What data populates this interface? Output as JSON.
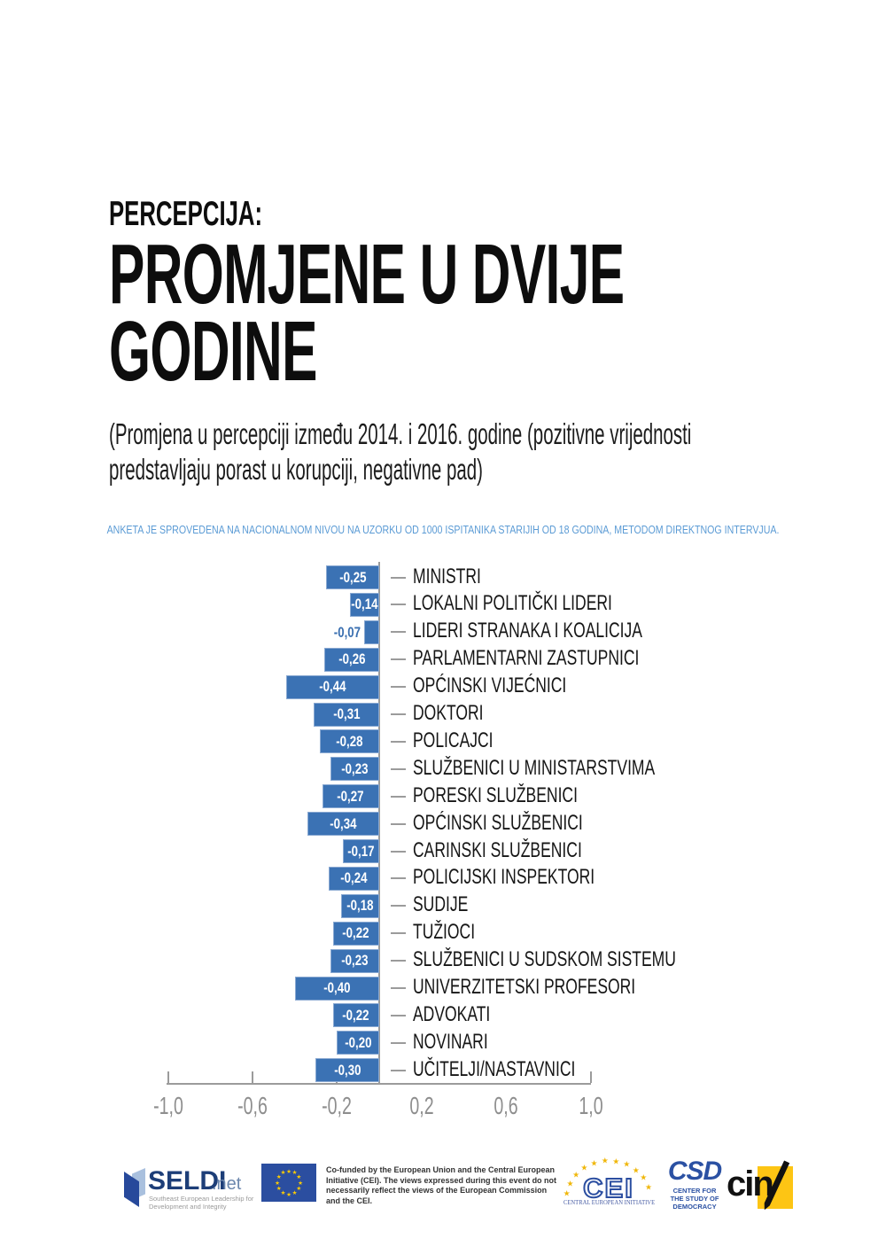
{
  "header": {
    "kicker": "PERCEPCIJA:",
    "title_lines": [
      "PROMJENE U DVIJE",
      "GODINE"
    ],
    "subtitle": "(Promjena u percepciji između 2014. i 2016. godine (pozitivne vrijednosti predstavljaju porast u korupciji, negativne pad)",
    "note": "ANKETA JE SPROVEDENA NA NACIONALNOM NIVOU NA UZORKU OD 1000 ISPITANIKA STARIJIH OD 18 GODINA, METODOM DIREKTNOG INTERVJUA."
  },
  "chart_data": {
    "type": "bar",
    "orientation": "horizontal",
    "title": "",
    "xlabel": "",
    "ylabel": "",
    "categories": [
      "MINISTRI",
      "LOKALNI POLITIČKI LIDERI",
      "LIDERI STRANAKA I KOALICIJA",
      "PARLAMENTARNI ZASTUPNICI",
      "OPĆINSKI VIJEĆNICI",
      "DOKTORI",
      "POLICAJCI",
      "SLUŽBENICI U MINISTARSTVIMA",
      "PORESKI SLUŽBENICI",
      "OPĆINSKI SLUŽBENICI",
      "CARINSKI SLUŽBENICI",
      "POLICIJSKI INSPEKTORI",
      "SUDIJE",
      "TUŽIOCI",
      "SLUŽBENICI U SUDSKOM SISTEMU",
      "UNIVERZITETSKI PROFESORI",
      "ADVOKATI",
      "NOVINARI",
      "UČITELJI/NASTAVNICI"
    ],
    "values": [
      -0.25,
      -0.14,
      -0.07,
      -0.26,
      -0.44,
      -0.31,
      -0.28,
      -0.23,
      -0.27,
      -0.34,
      -0.17,
      -0.24,
      -0.18,
      -0.22,
      -0.23,
      -0.4,
      -0.22,
      -0.2,
      -0.3
    ],
    "value_labels": [
      "-0,25",
      "-0,14",
      "-0,07",
      "-0,26",
      "-0,44",
      "-0,31",
      "-0,28",
      "-0,23",
      "-0,27",
      "-0,34",
      "-0,17",
      "-0,24",
      "-0,18",
      "-0,22",
      "-0,23",
      "-0,40",
      "-0,22",
      "-0,20",
      "-0,30"
    ],
    "xlim": [
      -1.0,
      1.0
    ],
    "x_tick_values": [
      -1.0,
      -0.6,
      -0.2,
      0.2,
      0.6,
      1.0
    ],
    "x_tick_labels": [
      "-1,0",
      "-0,6",
      "-0,2",
      "0,2",
      "0,6",
      "1,0"
    ],
    "grid": false,
    "legend": null,
    "bar_color": "#3b72b4",
    "axis_color": "#9b9b9b",
    "value_label_color_inside": "#ffffff",
    "value_label_color_outside": "#3a6fb0"
  },
  "footer": {
    "seldi": {
      "name": "SELDI",
      "suffix": ".net",
      "tagline": "Southeast European Leadership for Development and Integrity"
    },
    "eu": {
      "cofunded_text": "Co-funded by the European Union and the Central European Initiative (CEI). The views expressed during this event do not necessarily reflect the views of the European Commission and the CEI."
    },
    "cei": {
      "name": "CEI",
      "tagline": "CENTRAL EUROPEAN INITIATIVE"
    },
    "csd": {
      "name": "CSD",
      "tagline_lines": [
        "CENTER FOR",
        "THE STUDY OF",
        "DEMOCRACY"
      ]
    },
    "cin": {
      "name": "cin"
    }
  }
}
